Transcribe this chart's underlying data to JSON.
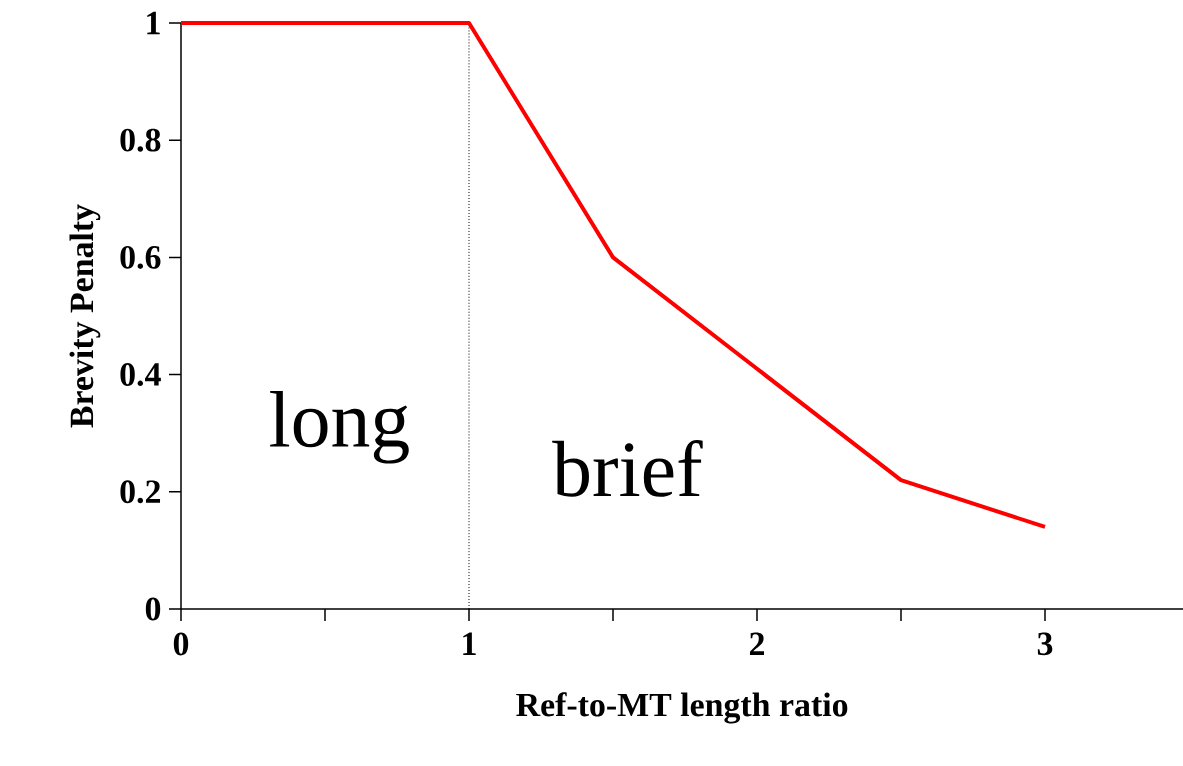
{
  "chart_data": {
    "type": "line",
    "x": [
      0,
      1,
      1.5,
      2,
      2.5,
      3
    ],
    "series": [
      {
        "color": "#ff0000",
        "values": [
          1,
          1,
          0.6,
          0.41,
          0.22,
          0.14
        ]
      }
    ],
    "xlabel": "Ref-to-MT length ratio",
    "ylabel": "Brevity Penalty",
    "xlim": [
      0,
      3.48
    ],
    "ylim": [
      0,
      1
    ],
    "xticks": [
      0,
      {
        "value": 0.5,
        "label": null
      },
      1,
      {
        "value": 1.5,
        "label": null
      },
      2,
      {
        "value": 2.5,
        "label": null
      },
      3
    ],
    "yticks": [
      0,
      0.2,
      0.4,
      0.6,
      0.8,
      1
    ],
    "ref_lines": [
      {
        "axis": "x",
        "value": 1,
        "color": "#000000",
        "line_style": "dotted"
      }
    ],
    "annotations": [
      "long",
      "brief"
    ]
  }
}
